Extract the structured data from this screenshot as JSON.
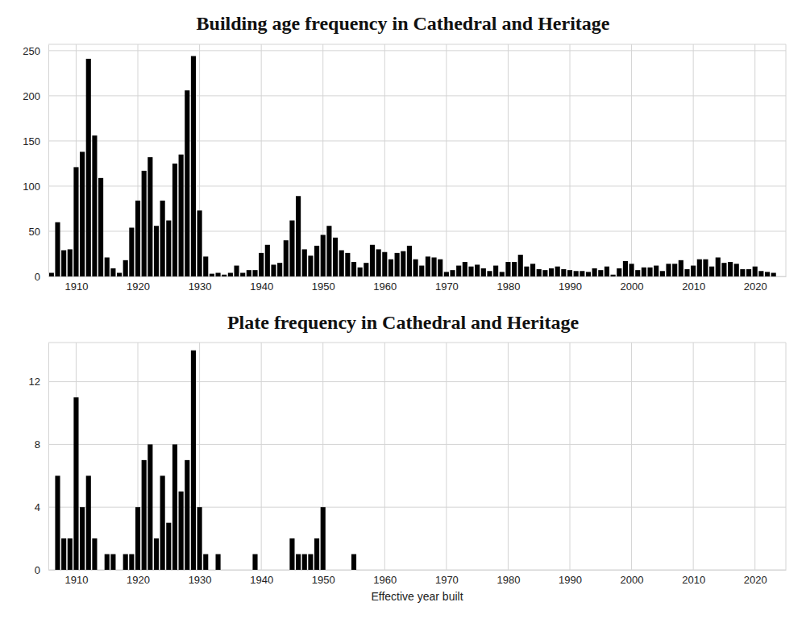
{
  "chart_data": [
    {
      "type": "bar",
      "title": "Building age frequency in Cathedral and Heritage",
      "x": [
        1906,
        1907,
        1908,
        1909,
        1910,
        1911,
        1912,
        1913,
        1914,
        1915,
        1916,
        1917,
        1918,
        1919,
        1920,
        1921,
        1922,
        1923,
        1924,
        1925,
        1926,
        1927,
        1928,
        1929,
        1930,
        1931,
        1932,
        1933,
        1934,
        1935,
        1936,
        1937,
        1938,
        1939,
        1940,
        1941,
        1942,
        1943,
        1944,
        1945,
        1946,
        1947,
        1948,
        1949,
        1950,
        1951,
        1952,
        1953,
        1954,
        1955,
        1956,
        1957,
        1958,
        1959,
        1960,
        1961,
        1962,
        1963,
        1964,
        1965,
        1966,
        1967,
        1968,
        1969,
        1970,
        1971,
        1972,
        1973,
        1974,
        1975,
        1976,
        1977,
        1978,
        1979,
        1980,
        1981,
        1982,
        1983,
        1984,
        1985,
        1986,
        1987,
        1988,
        1989,
        1990,
        1991,
        1992,
        1993,
        1994,
        1995,
        1996,
        1997,
        1998,
        1999,
        2000,
        2001,
        2002,
        2003,
        2004,
        2005,
        2006,
        2007,
        2008,
        2009,
        2010,
        2011,
        2012,
        2013,
        2014,
        2015,
        2016,
        2017,
        2018,
        2019,
        2020,
        2021,
        2022,
        2023
      ],
      "values": [
        4,
        60,
        29,
        30,
        121,
        138,
        241,
        156,
        109,
        21,
        9,
        4,
        18,
        54,
        84,
        117,
        132,
        56,
        84,
        62,
        125,
        135,
        206,
        244,
        73,
        22,
        3,
        4,
        2,
        4,
        12,
        4,
        7,
        7,
        26,
        35,
        13,
        15,
        40,
        62,
        89,
        30,
        23,
        34,
        46,
        56,
        43,
        29,
        26,
        16,
        10,
        15,
        35,
        30,
        27,
        19,
        26,
        28,
        34,
        19,
        12,
        22,
        21,
        19,
        5,
        7,
        12,
        16,
        11,
        13,
        9,
        6,
        12,
        5,
        16,
        16,
        24,
        11,
        14,
        8,
        7,
        9,
        11,
        8,
        7,
        6,
        6,
        5,
        9,
        7,
        11,
        2,
        9,
        17,
        14,
        7,
        10,
        10,
        12,
        6,
        14,
        14,
        18,
        8,
        12,
        19,
        19,
        11,
        21,
        15,
        16,
        14,
        8,
        8,
        11,
        6,
        5,
        4
      ],
      "color": "#000000",
      "xlim": [
        1905.5,
        2025
      ],
      "xticks": [
        1910,
        1920,
        1930,
        1940,
        1950,
        1960,
        1970,
        1980,
        1990,
        2000,
        2010,
        2020
      ],
      "ylim": [
        0,
        257
      ],
      "yticks": [
        0,
        50,
        100,
        150,
        200,
        250
      ],
      "grid": true
    },
    {
      "type": "bar",
      "title": "Plate frequency in Cathedral and Heritage",
      "x_label": "Effective year built",
      "x": [
        1907,
        1908,
        1909,
        1910,
        1911,
        1912,
        1913,
        1915,
        1916,
        1918,
        1919,
        1920,
        1921,
        1922,
        1923,
        1924,
        1925,
        1926,
        1927,
        1928,
        1929,
        1930,
        1931,
        1933,
        1939,
        1945,
        1946,
        1947,
        1948,
        1949,
        1950,
        1955
      ],
      "values": [
        6,
        2,
        2,
        11,
        4,
        6,
        2,
        1,
        1,
        1,
        1,
        4,
        7,
        8,
        2,
        6,
        3,
        8,
        5,
        7,
        14,
        4,
        1,
        1,
        1,
        2,
        1,
        1,
        1,
        2,
        4,
        1
      ],
      "color": "#000000",
      "xlim": [
        1905.5,
        2025
      ],
      "xticks": [
        1910,
        1920,
        1930,
        1940,
        1950,
        1960,
        1970,
        1980,
        1990,
        2000,
        2010,
        2020
      ],
      "ylim": [
        0,
        14.5
      ],
      "yticks": [
        0,
        4,
        8,
        12
      ],
      "grid": true
    }
  ]
}
